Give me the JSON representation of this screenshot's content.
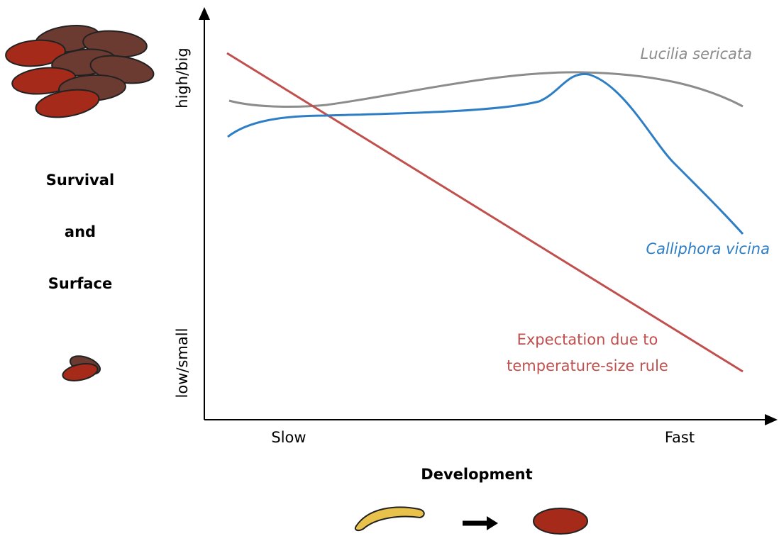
{
  "y_axis": {
    "top_label": "high/big",
    "bottom_label": "low/small"
  },
  "side_label": [
    "Survival",
    "and",
    "Surface"
  ],
  "x_axis": {
    "left_label": "Slow",
    "right_label": "Fast",
    "title": "Development"
  },
  "curves": {
    "lucilia": "Lucilia sericata",
    "calliphora": "Calliphora vicina",
    "expectation": [
      "Expectation due to",
      "temperature-size rule"
    ]
  }
}
